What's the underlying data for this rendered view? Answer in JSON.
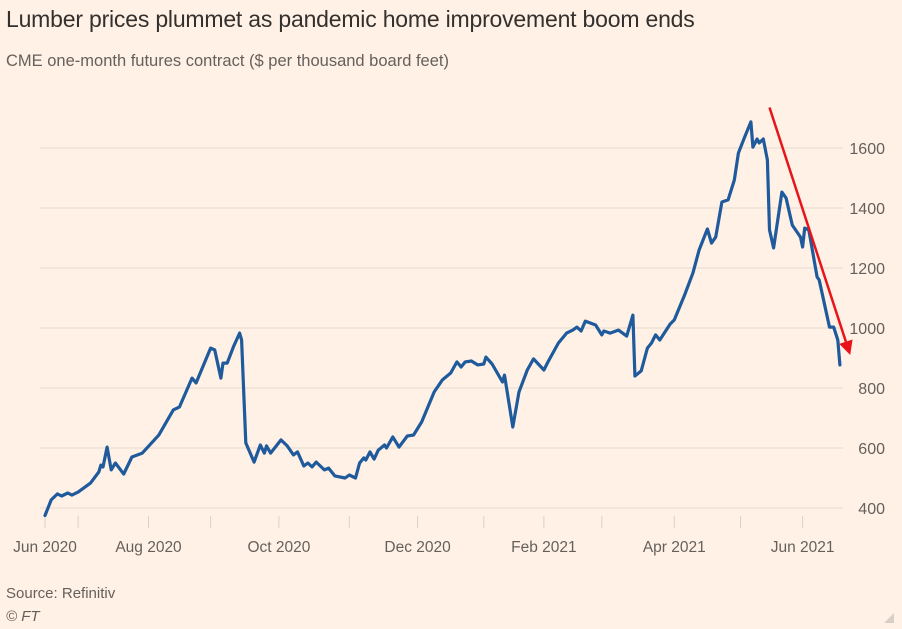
{
  "chart_data": {
    "type": "line",
    "title": "Lumber prices plummet as pandemic home improvement boom ends",
    "subtitle": "CME one-month futures contract ($ per thousand board feet)",
    "x_unit": "days since 2020-06-01 (approx.)",
    "xlabel": "",
    "ylabel": "",
    "ylim": [
      370,
      1700
    ],
    "xlim": [
      0,
      384
    ],
    "y_ticks": [
      400,
      600,
      800,
      1000,
      1200,
      1400,
      1600
    ],
    "x_tick_marks_days": [
      0,
      16,
      50,
      80,
      113,
      147,
      180,
      212,
      241,
      269,
      304,
      336,
      366
    ],
    "x_tick_labels": [
      {
        "day": 0,
        "label": "Jun 2020"
      },
      {
        "day": 50,
        "label": "Aug 2020"
      },
      {
        "day": 113,
        "label": "Oct 2020"
      },
      {
        "day": 180,
        "label": "Dec 2020"
      },
      {
        "day": 241,
        "label": "Feb 2021"
      },
      {
        "day": 304,
        "label": "Apr 2021"
      },
      {
        "day": 366,
        "label": "Jun 2021"
      }
    ],
    "grid": true,
    "series": [
      {
        "name": "Lumber futures",
        "color": "#1f5a9c",
        "points": [
          [
            0,
            375
          ],
          [
            3,
            427
          ],
          [
            6,
            447
          ],
          [
            8,
            440
          ],
          [
            11,
            450
          ],
          [
            13,
            443
          ],
          [
            16,
            453
          ],
          [
            22,
            483
          ],
          [
            26,
            520
          ],
          [
            27,
            543
          ],
          [
            28,
            537
          ],
          [
            30,
            603
          ],
          [
            32,
            527
          ],
          [
            34,
            550
          ],
          [
            38,
            513
          ],
          [
            42,
            570
          ],
          [
            47,
            583
          ],
          [
            55,
            643
          ],
          [
            62,
            727
          ],
          [
            65,
            737
          ],
          [
            71,
            833
          ],
          [
            73,
            817
          ],
          [
            80,
            933
          ],
          [
            82,
            927
          ],
          [
            85,
            833
          ],
          [
            86,
            883
          ],
          [
            88,
            883
          ],
          [
            91,
            937
          ],
          [
            94,
            983
          ],
          [
            95,
            960
          ],
          [
            97,
            617
          ],
          [
            101,
            553
          ],
          [
            104,
            610
          ],
          [
            106,
            583
          ],
          [
            107,
            607
          ],
          [
            109,
            583
          ],
          [
            114,
            627
          ],
          [
            117,
            607
          ],
          [
            120,
            577
          ],
          [
            122,
            587
          ],
          [
            125,
            540
          ],
          [
            127,
            550
          ],
          [
            129,
            537
          ],
          [
            131,
            553
          ],
          [
            135,
            527
          ],
          [
            137,
            533
          ],
          [
            140,
            507
          ],
          [
            145,
            500
          ],
          [
            147,
            510
          ],
          [
            150,
            500
          ],
          [
            152,
            550
          ],
          [
            154,
            567
          ],
          [
            155,
            560
          ],
          [
            157,
            587
          ],
          [
            159,
            563
          ],
          [
            161,
            593
          ],
          [
            164,
            610
          ],
          [
            165,
            600
          ],
          [
            168,
            637
          ],
          [
            171,
            603
          ],
          [
            175,
            640
          ],
          [
            178,
            643
          ],
          [
            182,
            687
          ],
          [
            188,
            787
          ],
          [
            192,
            827
          ],
          [
            196,
            850
          ],
          [
            199,
            887
          ],
          [
            201,
            870
          ],
          [
            203,
            887
          ],
          [
            206,
            890
          ],
          [
            209,
            877
          ],
          [
            212,
            880
          ],
          [
            213,
            903
          ],
          [
            216,
            880
          ],
          [
            221,
            820
          ],
          [
            222,
            843
          ],
          [
            226,
            670
          ],
          [
            229,
            787
          ],
          [
            233,
            860
          ],
          [
            236,
            897
          ],
          [
            241,
            860
          ],
          [
            243,
            887
          ],
          [
            248,
            950
          ],
          [
            252,
            983
          ],
          [
            255,
            993
          ],
          [
            257,
            1003
          ],
          [
            259,
            990
          ],
          [
            261,
            1023
          ],
          [
            266,
            1010
          ],
          [
            269,
            977
          ],
          [
            270,
            990
          ],
          [
            273,
            983
          ],
          [
            277,
            993
          ],
          [
            281,
            973
          ],
          [
            284,
            1043
          ],
          [
            285,
            840
          ],
          [
            288,
            857
          ],
          [
            291,
            933
          ],
          [
            293,
            950
          ],
          [
            295,
            977
          ],
          [
            297,
            960
          ],
          [
            302,
            1013
          ],
          [
            304,
            1027
          ],
          [
            309,
            1110
          ],
          [
            313,
            1183
          ],
          [
            316,
            1260
          ],
          [
            320,
            1330
          ],
          [
            322,
            1283
          ],
          [
            324,
            1303
          ],
          [
            327,
            1420
          ],
          [
            330,
            1427
          ],
          [
            333,
            1493
          ],
          [
            335,
            1583
          ],
          [
            338,
            1637
          ],
          [
            341,
            1687
          ],
          [
            342,
            1603
          ],
          [
            344,
            1630
          ],
          [
            345,
            1617
          ],
          [
            347,
            1630
          ],
          [
            349,
            1560
          ],
          [
            350,
            1327
          ],
          [
            352,
            1267
          ],
          [
            356,
            1453
          ],
          [
            358,
            1433
          ],
          [
            361,
            1343
          ],
          [
            365,
            1303
          ],
          [
            366,
            1270
          ],
          [
            367,
            1333
          ],
          [
            369,
            1327
          ],
          [
            373,
            1170
          ],
          [
            374,
            1160
          ],
          [
            379,
            1003
          ],
          [
            381,
            1003
          ],
          [
            383,
            960
          ],
          [
            384,
            877
          ]
        ]
      }
    ],
    "annotations": [
      {
        "type": "arrow",
        "color": "#e8141b",
        "from": {
          "day": 350,
          "value": 1735
        },
        "to": {
          "day": 389,
          "value": 910
        }
      }
    ],
    "source": "Source: Refinitiv",
    "credit": "© FT"
  }
}
